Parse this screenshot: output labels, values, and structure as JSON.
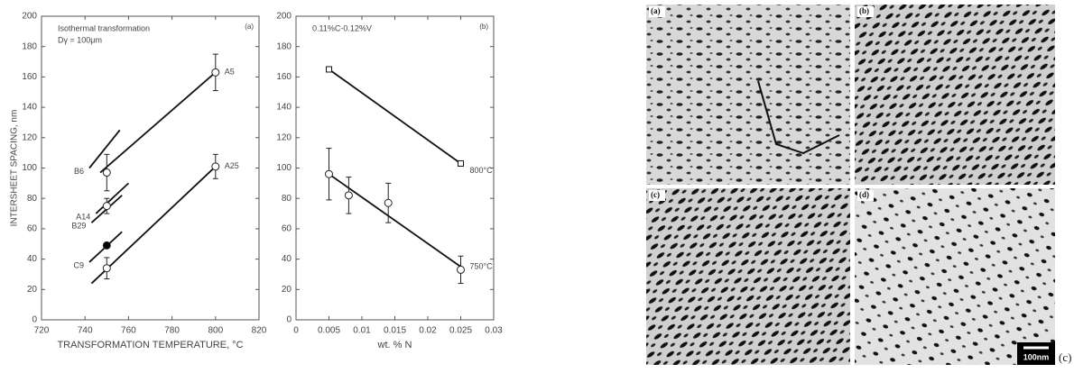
{
  "chart_data": [
    {
      "type": "line",
      "panel": "(a)",
      "annotations": [
        "Isothermal transformation",
        "Dγ = 100μm"
      ],
      "x_label": "TRANSFORMATION TEMPERATURE, °C",
      "y_label": "INTERSHEET SPACING, nm",
      "xlim": [
        720,
        820
      ],
      "xticks": [
        720,
        740,
        760,
        780,
        800,
        820
      ],
      "ylim": [
        0,
        200
      ],
      "yticks": [
        0,
        20,
        40,
        60,
        80,
        100,
        120,
        140,
        160,
        180,
        200
      ],
      "series": [
        {
          "name": "A5",
          "color": "#111",
          "x": [
            747,
            800
          ],
          "values": [
            97,
            163
          ]
        },
        {
          "name": "B6",
          "color": "#111",
          "x": [
            742,
            756
          ],
          "values": [
            100,
            125
          ]
        },
        {
          "name": "A14",
          "color": "#111",
          "x": [
            745,
            760
          ],
          "values": [
            70,
            90
          ]
        },
        {
          "name": "B29",
          "color": "#111",
          "x": [
            743,
            757
          ],
          "values": [
            64,
            82
          ]
        },
        {
          "name": "C9",
          "color": "#111",
          "x": [
            742,
            757
          ],
          "values": [
            38,
            58
          ]
        },
        {
          "name": "A25",
          "color": "#111",
          "x": [
            743,
            800
          ],
          "values": [
            24,
            101
          ]
        }
      ],
      "points": [
        {
          "marker": "circle",
          "x": [
            750,
            750,
            750,
            800,
            800
          ],
          "values": [
            97,
            75,
            34,
            163,
            101
          ],
          "errors": [
            12,
            5,
            7,
            12,
            8
          ]
        },
        {
          "marker": "filled",
          "x": [
            750
          ],
          "values": [
            49
          ],
          "errors": [
            0
          ]
        }
      ]
    },
    {
      "type": "line",
      "panel": "(b)",
      "annotations": [
        "0.11%C-0.12%V"
      ],
      "x_label": "wt. % N",
      "xlim": [
        0,
        0.03
      ],
      "xticks": [
        0,
        0.005,
        0.01,
        0.015,
        0.02,
        0.025,
        0.03
      ],
      "ylim": [
        0,
        200
      ],
      "yticks": [
        0,
        20,
        40,
        60,
        80,
        100,
        120,
        140,
        160,
        180,
        200
      ],
      "series": [
        {
          "name": "800°C",
          "color": "#111",
          "x": [
            0.005,
            0.025
          ],
          "values": [
            165,
            103
          ],
          "marker": "square"
        },
        {
          "name": "750°C",
          "color": "#111",
          "x": [
            0.005,
            0.025
          ],
          "values": [
            96,
            35
          ]
        }
      ],
      "points": [
        {
          "marker": "circle",
          "x": [
            0.005,
            0.008,
            0.014,
            0.025
          ],
          "values": [
            96,
            82,
            77,
            33
          ],
          "errors": [
            17,
            12,
            13,
            9
          ]
        }
      ]
    }
  ],
  "micrographs": {
    "panels": [
      "(a)",
      "(b)",
      "(c)",
      "(d)"
    ],
    "scale_bar": "100nm",
    "figure_label": "(c)"
  }
}
